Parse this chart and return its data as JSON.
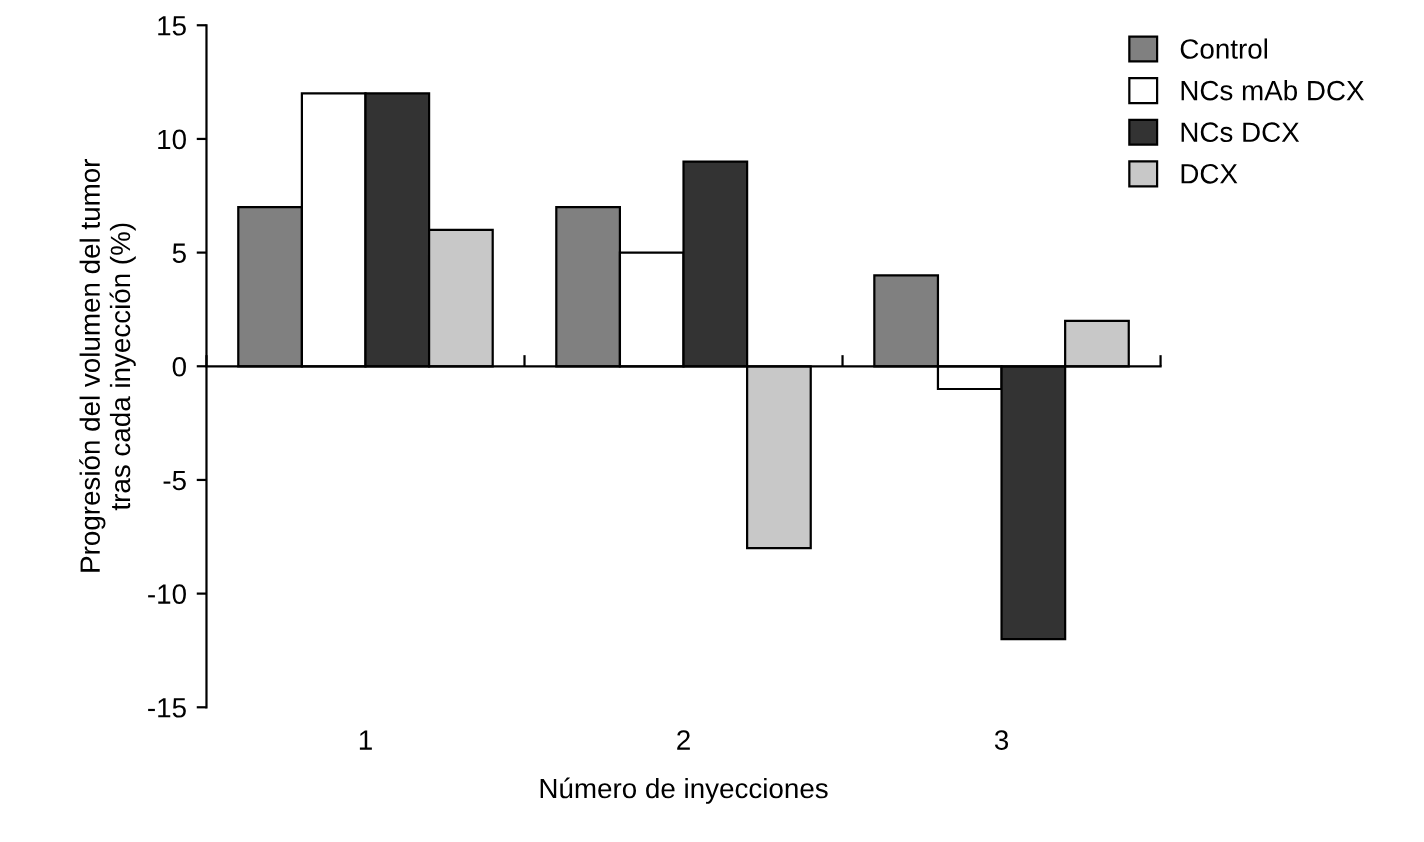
{
  "chart_data": {
    "type": "bar",
    "xlabel": "Número de inyecciones",
    "ylabel": "Progresión del volumen del tumor\ntras cada inyección (%)",
    "categories": [
      "1",
      "2",
      "3"
    ],
    "series": [
      {
        "name": "Control",
        "color": "#808080",
        "values": [
          7,
          7,
          4
        ]
      },
      {
        "name": "NCs mAb DCX",
        "color": "#ffffff",
        "values": [
          12,
          5,
          -1
        ]
      },
      {
        "name": "NCs DCX",
        "color": "#333333",
        "values": [
          12,
          9,
          -12
        ]
      },
      {
        "name": "DCX",
        "color": "#c8c8c8",
        "values": [
          6,
          -8,
          2
        ]
      }
    ],
    "ylim": [
      -15,
      15
    ],
    "yticks": [
      -15,
      -10,
      -5,
      0,
      5,
      10,
      15
    ],
    "legend": "top right"
  }
}
